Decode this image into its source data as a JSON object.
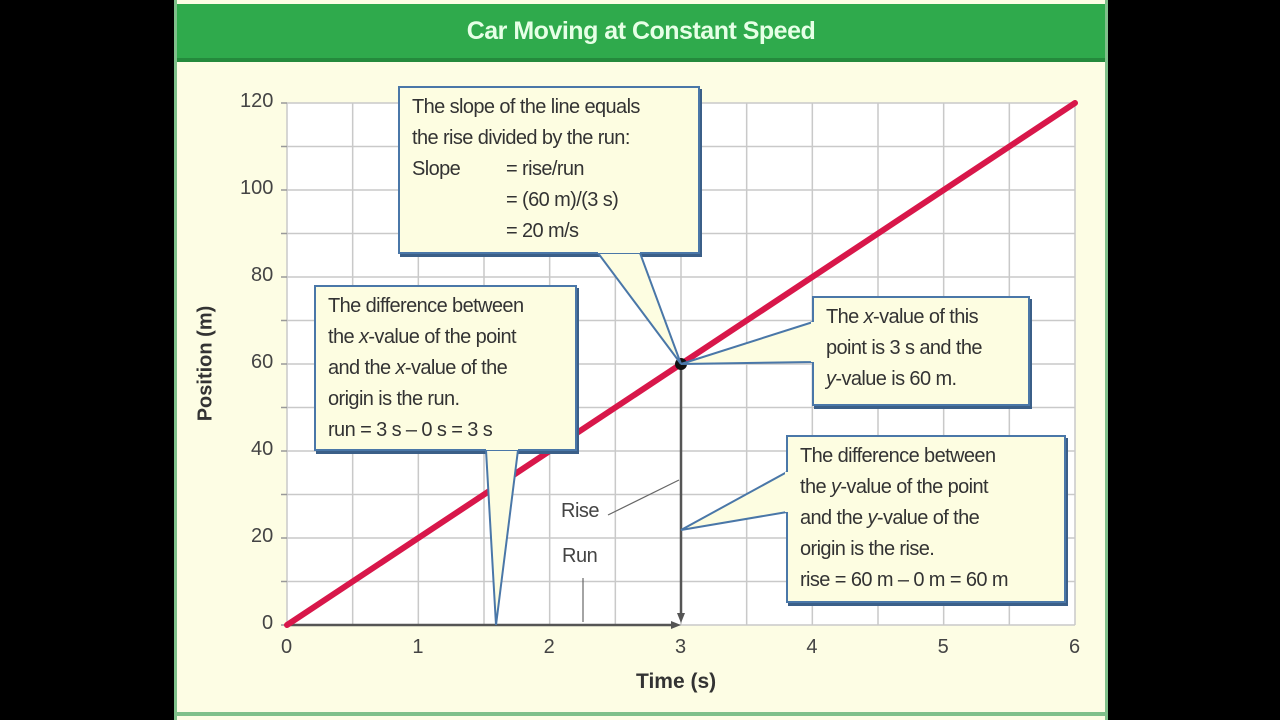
{
  "chart_data": {
    "type": "line",
    "title": "Car Moving at Constant Speed",
    "xlabel": "Time (s)",
    "ylabel": "Position (m)",
    "xlim": [
      0,
      6
    ],
    "ylim": [
      0,
      120
    ],
    "x_ticks": [
      "0",
      "1",
      "2",
      "3",
      "4",
      "5",
      "6"
    ],
    "y_ticks": [
      "0",
      "20",
      "40",
      "60",
      "80",
      "100",
      "120"
    ],
    "grid": true,
    "grid_minor": {
      "x_step": 0.5,
      "y_step": 10
    },
    "series": [
      {
        "name": "Position",
        "color": "#d8174a",
        "x": [
          0,
          1,
          2,
          3,
          4,
          5,
          6
        ],
        "values": [
          0,
          20,
          40,
          60,
          80,
          100,
          120
        ]
      }
    ],
    "highlight_point": {
      "x": 3,
      "y": 60
    },
    "annotations": {
      "rise_label": "Rise",
      "run_label": "Run"
    }
  },
  "colors": {
    "title_bar": "#2faa4c",
    "background": "#fdfde4",
    "line": "#d8174a",
    "callout_border": "#4a77a8",
    "grid": "#c9c9c9"
  },
  "callouts": {
    "slope": {
      "lines": [
        "The slope of the line equals",
        "the rise divided by the run:"
      ],
      "eq_label": "Slope",
      "eq_lines": [
        "= rise/run",
        "= (60 m)/(3 s)",
        "= 20 m/s"
      ]
    },
    "run": {
      "line1_a": "The difference between",
      "line2_a": "the ",
      "line2_var": "x",
      "line2_b": "-value of the point",
      "line3_a": "and the ",
      "line3_var": "x",
      "line3_b": "-value of the",
      "line4": "origin is the run.",
      "line5": "run = 3 s – 0 s = 3 s"
    },
    "point": {
      "line1_a": "The ",
      "line1_var": "x",
      "line1_b": "-value of this",
      "line2": "point is 3 s and the",
      "line3_var": "y",
      "line3_b": "-value is 60 m."
    },
    "rise": {
      "line1": "The difference between",
      "line2_a": "the ",
      "line2_var": "y",
      "line2_b": "-value of the point",
      "line3_a": "and the ",
      "line3_var": "y",
      "line3_b": "-value of the",
      "line4": "origin is the rise.",
      "line5": "rise = 60 m – 0 m = 60 m"
    }
  }
}
